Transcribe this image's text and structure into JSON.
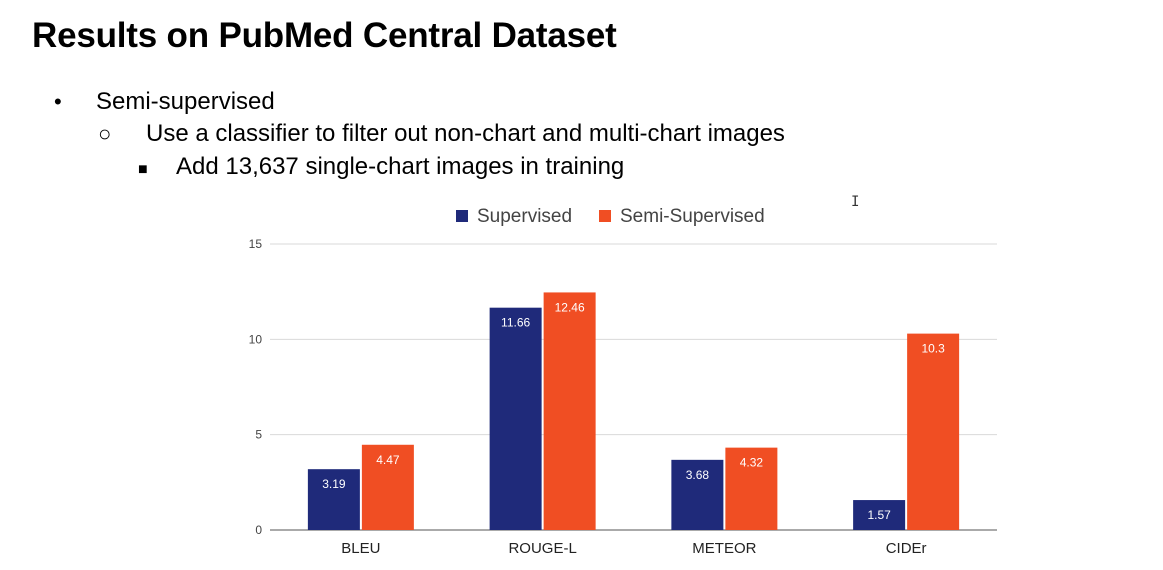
{
  "slide": {
    "title": "Results on PubMed Central Dataset",
    "bullets": [
      {
        "marker": "•",
        "text": "Semi-supervised"
      },
      {
        "marker": "○",
        "text": "Use a classifier to filter out non-chart and multi-chart images"
      },
      {
        "marker": "■",
        "text": "Add 13,637 single-chart images in training"
      }
    ],
    "cursor_glyph": "I"
  },
  "chart_data": {
    "type": "bar",
    "categories": [
      "BLEU",
      "ROUGE-L",
      "METEOR",
      "CIDEr"
    ],
    "series": [
      {
        "name": "Supervised",
        "color": "#1f2a7a",
        "values": [
          3.19,
          11.66,
          3.68,
          1.57
        ]
      },
      {
        "name": "Semi-Supervised",
        "color": "#f04e23",
        "values": [
          4.47,
          12.46,
          4.32,
          10.3
        ]
      }
    ],
    "yticks": [
      0,
      5,
      10,
      15
    ],
    "ylim": [
      0,
      15
    ],
    "grid": true,
    "legend": "top-center"
  }
}
